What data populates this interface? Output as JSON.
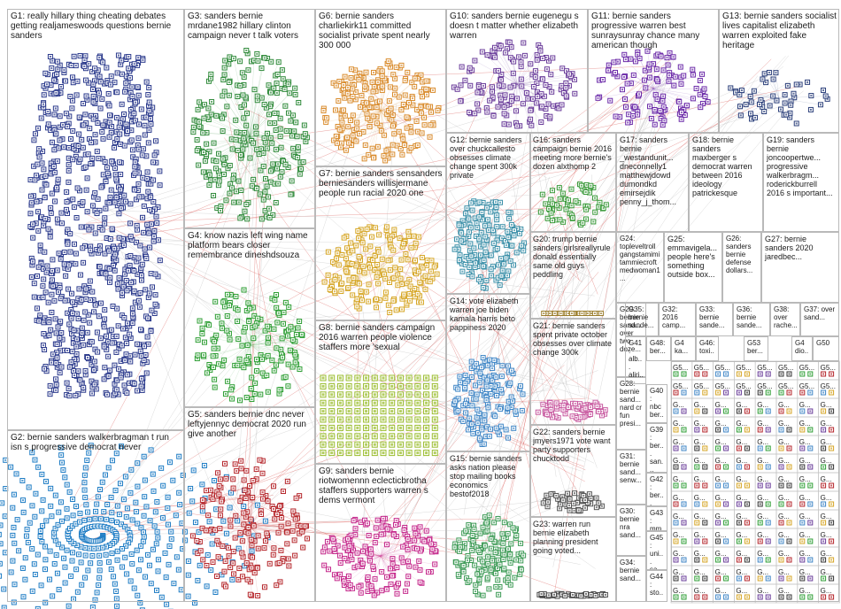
{
  "title": "",
  "palette": {
    "G1": "#2b3a8c",
    "G2": "#1e7cc4",
    "G3": "#2f8a3a",
    "G4": "#2e9e34",
    "G5": "#b5262b",
    "G6": "#d98c2e",
    "G7": "#d6a626",
    "G8": "#9bbd2f",
    "G9": "#c4268a",
    "G10": "#6a3c9a",
    "G11": "#6b2aa8",
    "G12": "#3a8fa8",
    "G13": "#2b3f7a",
    "G14": "#3f86c6",
    "G15": "#3c9a55",
    "G16": "#3a9a3a",
    "G17": "#333333",
    "G18": "#3a3a3a",
    "G19": "#444444",
    "G20": "#9a7c2a",
    "G21": "#c85aa0",
    "G22": "#555555",
    "G23": "#4a4a4a",
    "edge": "#d9534f",
    "edge_gray": "#bdbdbd"
  },
  "groups": [
    {
      "id": "G1",
      "label": "G1: really hillary thing cheating debates getting realjameswoods questions bernie sanders"
    },
    {
      "id": "G2",
      "label": "G2: bernie sanders walkerbragman t run isn s progressive democrat never"
    },
    {
      "id": "G3",
      "label": "G3: sanders bernie mrdane1982 hillary clinton campaign never t talk voters"
    },
    {
      "id": "G4",
      "label": "G4: know nazis left wing name platform bears closer remembrance dineshdsouza"
    },
    {
      "id": "G5",
      "label": "G5: sanders bernie dnc never leftyjennyc democrat 2020 run give another"
    },
    {
      "id": "G6",
      "label": "G6: bernie sanders charliekirk11 committed socialist private spent nearly 300 000"
    },
    {
      "id": "G7",
      "label": "G7: bernie sanders sensanders berniesanders willisjermane people run racial 2020 one"
    },
    {
      "id": "G8",
      "label": "G8: bernie sanders campaign 2016 warren people violence staffers more 'sexual"
    },
    {
      "id": "G9",
      "label": "G9: sanders bernie riotwomennn eclecticbrotha staffers supporters warren s dems vermont"
    },
    {
      "id": "G10",
      "label": "G10: sanders bernie eugenegu s doesn t matter whether elizabeth warren"
    },
    {
      "id": "G11",
      "label": "G11: bernie sanders progressive warren best sunraysunray chance many american though"
    },
    {
      "id": "G12",
      "label": "G12: bernie sanders over chuckcallesto obsesses climate change spent 300k private"
    },
    {
      "id": "G13",
      "label": "G13: bernie sanders socialist lives capitalist elizabeth warren exploited fake heritage"
    },
    {
      "id": "G14",
      "label": "G14: vote elizabeth warren joe biden kamala harris beto pappiness 2020"
    },
    {
      "id": "G15",
      "label": "G15: bernie sanders asks nation please stop mailing books economics bestof2018"
    },
    {
      "id": "G16",
      "label": "G16: sanders campaign bernie 2016 meeting more bernie's dozen alxthomp 2"
    },
    {
      "id": "G17",
      "label": "G17: sanders bernie _westandunit... dneconnelly1 matthewjdowd dumondkd emirsejdik penny_j_thom..."
    },
    {
      "id": "G18",
      "label": "G18: bernie sanders maxberger s democrat warren between 2016 ideology patrickesque"
    },
    {
      "id": "G19",
      "label": "G19: sanders bernie joncoopertwe... progressive walkerbragm... roderickburrell 2016 s important..."
    },
    {
      "id": "G20",
      "label": "G20: trump bernie sanders girlsreallyrule donald essentially same old guys peddling"
    },
    {
      "id": "G21",
      "label": "G21: bernie sanders spent private october obsesses over climate change 300k"
    },
    {
      "id": "G22",
      "label": "G22: sanders bernie jmyers1971 vote want party supporters chucktodd"
    },
    {
      "id": "G23",
      "label": "G23: warren run bernie elizabeth planning president going voted..."
    },
    {
      "id": "G24",
      "label": "G24: topleveltroll gangstamimi tammiecroft medwoman1..."
    },
    {
      "id": "G25",
      "label": "G25: emmavigela... people here's something outside box..."
    },
    {
      "id": "G26",
      "label": "G26: sanders bernie defense dollars..."
    },
    {
      "id": "G27",
      "label": "G27: bernie sanders 2020 jaredbec..."
    },
    {
      "id": "G28",
      "label": "G28: bernie sand... nard cr fun presi..."
    },
    {
      "id": "G29",
      "label": "G29: bernie sand... over two doze..."
    },
    {
      "id": "G30",
      "label": "G30: bernie nra sand..."
    },
    {
      "id": "G31",
      "label": "G31: bernie sand... senw..."
    },
    {
      "id": "G32",
      "label": "G32: 2016 camp..."
    },
    {
      "id": "G33",
      "label": "G33: bernie sande..."
    },
    {
      "id": "G34",
      "label": "G34: bernie sand..."
    },
    {
      "id": "G35",
      "label": "G35: bernie sande..."
    },
    {
      "id": "G36",
      "label": "G36: bernie sande..."
    },
    {
      "id": "G37",
      "label": "G37: over sand..."
    },
    {
      "id": "G38",
      "label": "G38: over rache..."
    },
    {
      "id": "G39",
      "label": "G39: ber... san..."
    },
    {
      "id": "G40",
      "label": "G40: nbc ber..."
    },
    {
      "id": "G41",
      "label": "G41: alb... aliri..."
    },
    {
      "id": "G42",
      "label": "G42: ber... nex..."
    },
    {
      "id": "G43",
      "label": "G43: mm..."
    },
    {
      "id": "G44",
      "label": "G44: sto..."
    },
    {
      "id": "G45",
      "label": "G45: uni... sa..."
    },
    {
      "id": "G46",
      "label": "G46: toxi..."
    },
    {
      "id": "G47",
      "label": "G4 dio..."
    },
    {
      "id": "G48",
      "label": "G48: ber..."
    },
    {
      "id": "G49",
      "label": "G4 ka..."
    },
    {
      "id": "G50",
      "label": "G50"
    },
    {
      "id": "G53",
      "label": "G53 ber..."
    }
  ],
  "small_grid_label": "G5...",
  "small_grid_label_alt": "G..."
}
